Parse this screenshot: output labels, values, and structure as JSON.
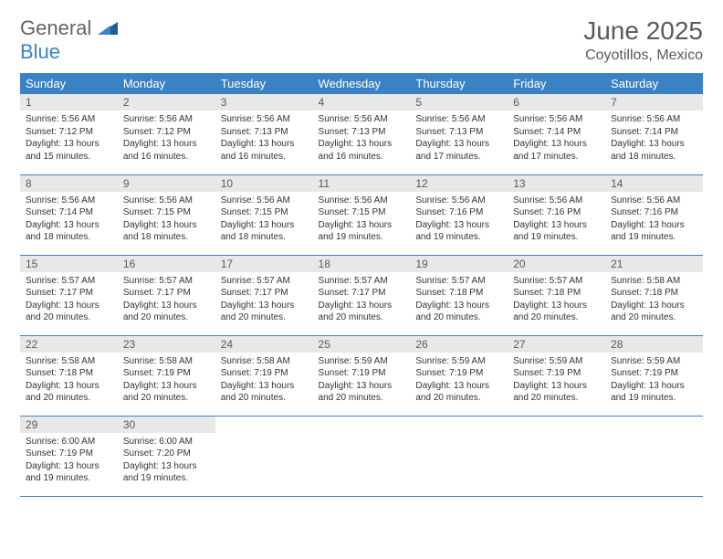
{
  "brand": {
    "part1": "General",
    "part2": "Blue"
  },
  "title": "June 2025",
  "location": "Coyotillos, Mexico",
  "colors": {
    "header_bg": "#3b82c4",
    "header_text": "#ffffff",
    "daynum_bg": "#e8e8e8",
    "text_gray": "#5a5a5a",
    "body_text": "#333333",
    "page_bg": "#ffffff"
  },
  "fonts": {
    "title_size": 28,
    "location_size": 16,
    "dayhead_size": 13,
    "daynum_size": 12,
    "body_size": 10
  },
  "weekdays": [
    "Sunday",
    "Monday",
    "Tuesday",
    "Wednesday",
    "Thursday",
    "Friday",
    "Saturday"
  ],
  "weeks": [
    [
      {
        "day": "1",
        "sunrise": "Sunrise: 5:56 AM",
        "sunset": "Sunset: 7:12 PM",
        "dl1": "Daylight: 13 hours",
        "dl2": "and 15 minutes."
      },
      {
        "day": "2",
        "sunrise": "Sunrise: 5:56 AM",
        "sunset": "Sunset: 7:12 PM",
        "dl1": "Daylight: 13 hours",
        "dl2": "and 16 minutes."
      },
      {
        "day": "3",
        "sunrise": "Sunrise: 5:56 AM",
        "sunset": "Sunset: 7:13 PM",
        "dl1": "Daylight: 13 hours",
        "dl2": "and 16 minutes."
      },
      {
        "day": "4",
        "sunrise": "Sunrise: 5:56 AM",
        "sunset": "Sunset: 7:13 PM",
        "dl1": "Daylight: 13 hours",
        "dl2": "and 16 minutes."
      },
      {
        "day": "5",
        "sunrise": "Sunrise: 5:56 AM",
        "sunset": "Sunset: 7:13 PM",
        "dl1": "Daylight: 13 hours",
        "dl2": "and 17 minutes."
      },
      {
        "day": "6",
        "sunrise": "Sunrise: 5:56 AM",
        "sunset": "Sunset: 7:14 PM",
        "dl1": "Daylight: 13 hours",
        "dl2": "and 17 minutes."
      },
      {
        "day": "7",
        "sunrise": "Sunrise: 5:56 AM",
        "sunset": "Sunset: 7:14 PM",
        "dl1": "Daylight: 13 hours",
        "dl2": "and 18 minutes."
      }
    ],
    [
      {
        "day": "8",
        "sunrise": "Sunrise: 5:56 AM",
        "sunset": "Sunset: 7:14 PM",
        "dl1": "Daylight: 13 hours",
        "dl2": "and 18 minutes."
      },
      {
        "day": "9",
        "sunrise": "Sunrise: 5:56 AM",
        "sunset": "Sunset: 7:15 PM",
        "dl1": "Daylight: 13 hours",
        "dl2": "and 18 minutes."
      },
      {
        "day": "10",
        "sunrise": "Sunrise: 5:56 AM",
        "sunset": "Sunset: 7:15 PM",
        "dl1": "Daylight: 13 hours",
        "dl2": "and 18 minutes."
      },
      {
        "day": "11",
        "sunrise": "Sunrise: 5:56 AM",
        "sunset": "Sunset: 7:15 PM",
        "dl1": "Daylight: 13 hours",
        "dl2": "and 19 minutes."
      },
      {
        "day": "12",
        "sunrise": "Sunrise: 5:56 AM",
        "sunset": "Sunset: 7:16 PM",
        "dl1": "Daylight: 13 hours",
        "dl2": "and 19 minutes."
      },
      {
        "day": "13",
        "sunrise": "Sunrise: 5:56 AM",
        "sunset": "Sunset: 7:16 PM",
        "dl1": "Daylight: 13 hours",
        "dl2": "and 19 minutes."
      },
      {
        "day": "14",
        "sunrise": "Sunrise: 5:56 AM",
        "sunset": "Sunset: 7:16 PM",
        "dl1": "Daylight: 13 hours",
        "dl2": "and 19 minutes."
      }
    ],
    [
      {
        "day": "15",
        "sunrise": "Sunrise: 5:57 AM",
        "sunset": "Sunset: 7:17 PM",
        "dl1": "Daylight: 13 hours",
        "dl2": "and 20 minutes."
      },
      {
        "day": "16",
        "sunrise": "Sunrise: 5:57 AM",
        "sunset": "Sunset: 7:17 PM",
        "dl1": "Daylight: 13 hours",
        "dl2": "and 20 minutes."
      },
      {
        "day": "17",
        "sunrise": "Sunrise: 5:57 AM",
        "sunset": "Sunset: 7:17 PM",
        "dl1": "Daylight: 13 hours",
        "dl2": "and 20 minutes."
      },
      {
        "day": "18",
        "sunrise": "Sunrise: 5:57 AM",
        "sunset": "Sunset: 7:17 PM",
        "dl1": "Daylight: 13 hours",
        "dl2": "and 20 minutes."
      },
      {
        "day": "19",
        "sunrise": "Sunrise: 5:57 AM",
        "sunset": "Sunset: 7:18 PM",
        "dl1": "Daylight: 13 hours",
        "dl2": "and 20 minutes."
      },
      {
        "day": "20",
        "sunrise": "Sunrise: 5:57 AM",
        "sunset": "Sunset: 7:18 PM",
        "dl1": "Daylight: 13 hours",
        "dl2": "and 20 minutes."
      },
      {
        "day": "21",
        "sunrise": "Sunrise: 5:58 AM",
        "sunset": "Sunset: 7:18 PM",
        "dl1": "Daylight: 13 hours",
        "dl2": "and 20 minutes."
      }
    ],
    [
      {
        "day": "22",
        "sunrise": "Sunrise: 5:58 AM",
        "sunset": "Sunset: 7:18 PM",
        "dl1": "Daylight: 13 hours",
        "dl2": "and 20 minutes."
      },
      {
        "day": "23",
        "sunrise": "Sunrise: 5:58 AM",
        "sunset": "Sunset: 7:19 PM",
        "dl1": "Daylight: 13 hours",
        "dl2": "and 20 minutes."
      },
      {
        "day": "24",
        "sunrise": "Sunrise: 5:58 AM",
        "sunset": "Sunset: 7:19 PM",
        "dl1": "Daylight: 13 hours",
        "dl2": "and 20 minutes."
      },
      {
        "day": "25",
        "sunrise": "Sunrise: 5:59 AM",
        "sunset": "Sunset: 7:19 PM",
        "dl1": "Daylight: 13 hours",
        "dl2": "and 20 minutes."
      },
      {
        "day": "26",
        "sunrise": "Sunrise: 5:59 AM",
        "sunset": "Sunset: 7:19 PM",
        "dl1": "Daylight: 13 hours",
        "dl2": "and 20 minutes."
      },
      {
        "day": "27",
        "sunrise": "Sunrise: 5:59 AM",
        "sunset": "Sunset: 7:19 PM",
        "dl1": "Daylight: 13 hours",
        "dl2": "and 20 minutes."
      },
      {
        "day": "28",
        "sunrise": "Sunrise: 5:59 AM",
        "sunset": "Sunset: 7:19 PM",
        "dl1": "Daylight: 13 hours",
        "dl2": "and 19 minutes."
      }
    ],
    [
      {
        "day": "29",
        "sunrise": "Sunrise: 6:00 AM",
        "sunset": "Sunset: 7:19 PM",
        "dl1": "Daylight: 13 hours",
        "dl2": "and 19 minutes."
      },
      {
        "day": "30",
        "sunrise": "Sunrise: 6:00 AM",
        "sunset": "Sunset: 7:20 PM",
        "dl1": "Daylight: 13 hours",
        "dl2": "and 19 minutes."
      },
      null,
      null,
      null,
      null,
      null
    ]
  ]
}
